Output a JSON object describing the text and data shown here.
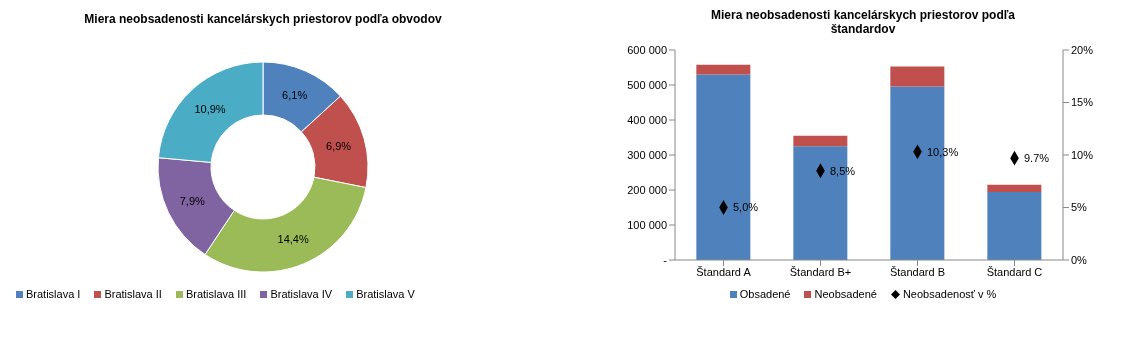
{
  "chart_data": [
    {
      "type": "donut",
      "title": "Miera neobsadenosti kancelárskych priestorov podľa obvodov",
      "categories": [
        "Bratislava I",
        "Bratislava II",
        "Bratislava III",
        "Bratislava IV",
        "Bratislava V"
      ],
      "values": [
        6.1,
        6.9,
        14.4,
        7.9,
        10.9
      ],
      "colors": [
        "#4f81bd",
        "#c0504d",
        "#9bbb59",
        "#8064a2",
        "#4bacc6"
      ],
      "value_labels": [
        "6,1%",
        "6,9%",
        "14,4%",
        "7,9%",
        "10,9%"
      ],
      "legend": "bottom"
    },
    {
      "type": "bar",
      "stacked": true,
      "title": "Miera neobsadenosti kancelárskych priestorov podľa štandardov",
      "categories": [
        "Štandard A",
        "Štandard B+",
        "Štandard B",
        "Štandard C"
      ],
      "series": [
        {
          "name": "Obsadené",
          "color": "#4f81bd",
          "values": [
            530000,
            325000,
            496000,
            194000
          ]
        },
        {
          "name": "Neobsadené",
          "color": "#c0504d",
          "values": [
            28000,
            30000,
            57000,
            21000
          ]
        },
        {
          "name": "Neobsadenosť v %",
          "type": "scatter",
          "axis": "y2",
          "color": "#000000",
          "marker": "diamond",
          "values": [
            5.0,
            8.5,
            10.3,
            9.7
          ],
          "value_labels": [
            "5,0%",
            "8,5%",
            "10,3%",
            "9.7%"
          ]
        }
      ],
      "ylim": [
        0,
        600000
      ],
      "yticks": [
        {
          "value": 0,
          "label": "-"
        },
        {
          "value": 100000,
          "label": "100 000"
        },
        {
          "value": 200000,
          "label": "200 000"
        },
        {
          "value": 300000,
          "label": "300 000"
        },
        {
          "value": 400000,
          "label": "400 000"
        },
        {
          "value": 500000,
          "label": "500 000"
        },
        {
          "value": 600000,
          "label": "600 000"
        }
      ],
      "y2lim": [
        0,
        20
      ],
      "y2ticks": [
        {
          "value": 0,
          "label": "0%"
        },
        {
          "value": 5,
          "label": "5%"
        },
        {
          "value": 10,
          "label": "10%"
        },
        {
          "value": 15,
          "label": "15%"
        },
        {
          "value": 20,
          "label": "20%"
        }
      ],
      "legend": "bottom"
    }
  ]
}
